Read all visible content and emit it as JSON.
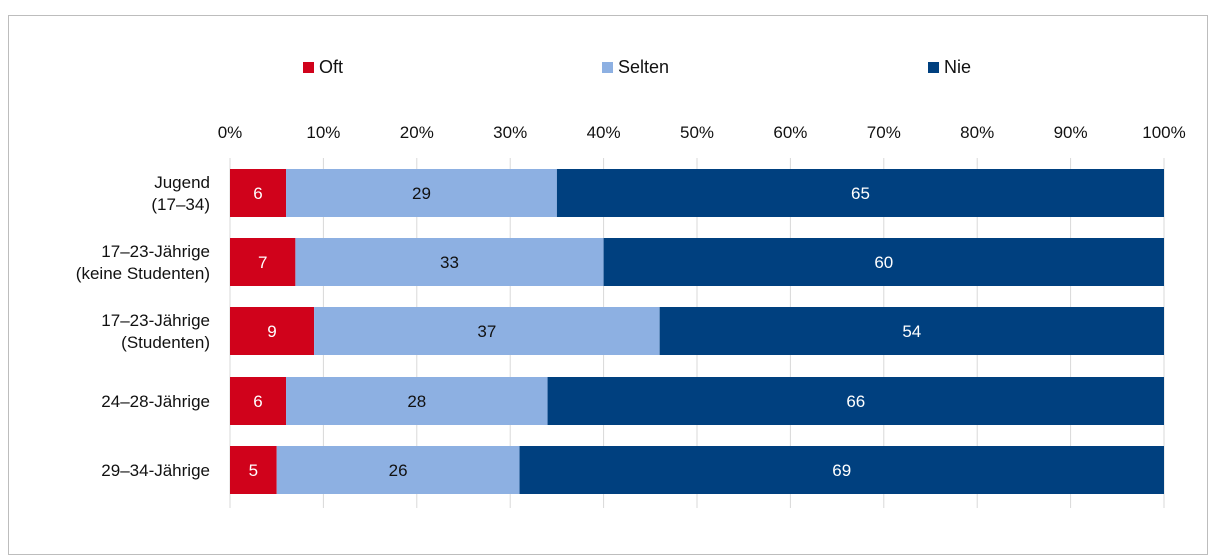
{
  "chart_data": {
    "type": "bar",
    "orientation": "horizontal",
    "stacked": true,
    "title": "",
    "categories": [
      [
        "Jugend",
        "(17–34)"
      ],
      [
        "17–23-Jährige",
        "(keine Studenten)"
      ],
      [
        "17–23-Jährige",
        "(Studenten)"
      ],
      [
        "24–28-Jährige"
      ],
      [
        "29–34-Jährige"
      ]
    ],
    "series": [
      {
        "name": "Oft",
        "color": "#d0021b",
        "label_color": "#ffffff",
        "values": [
          6,
          7,
          9,
          6,
          5
        ]
      },
      {
        "name": "Selten",
        "color": "#8db0e2",
        "label_color": "#111111",
        "values": [
          29,
          33,
          37,
          28,
          26
        ]
      },
      {
        "name": "Nie",
        "color": "#00407f",
        "label_color": "#ffffff",
        "values": [
          65,
          60,
          54,
          66,
          69
        ]
      }
    ],
    "xlim": [
      0,
      100
    ],
    "xticks": [
      "0%",
      "10%",
      "20%",
      "30%",
      "40%",
      "50%",
      "60%",
      "70%",
      "80%",
      "90%",
      "100%"
    ],
    "grid": "vertical",
    "legend": "top"
  }
}
